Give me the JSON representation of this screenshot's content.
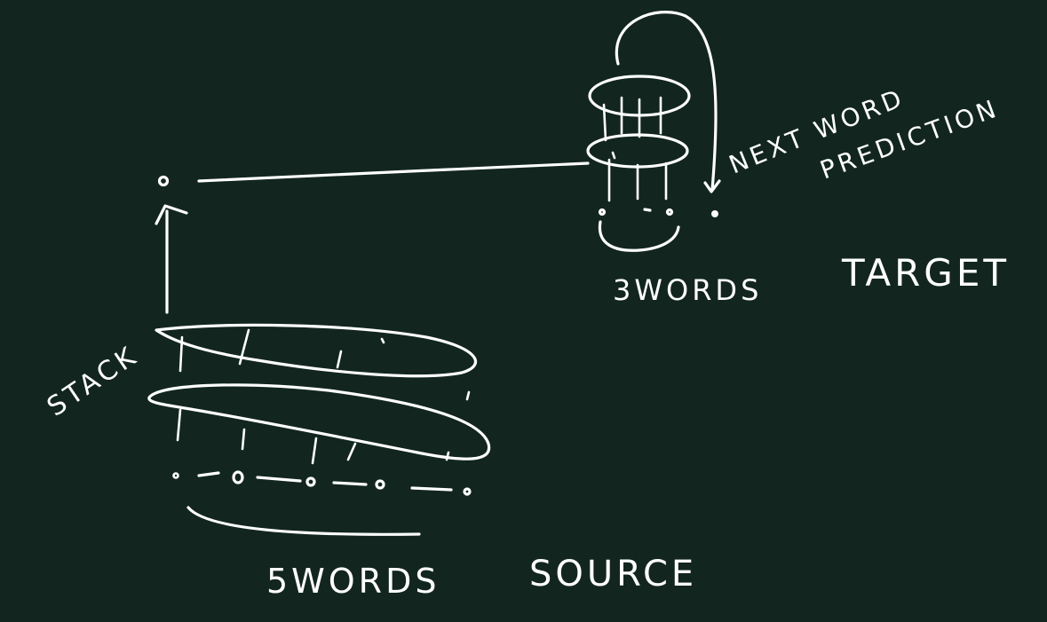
{
  "canvas": {
    "background": "#12261f",
    "ink_color": "#ffffff"
  },
  "labels": {
    "stack": "STACK",
    "source_words": "5WORDS",
    "source": "SOURCE",
    "target_words": "3WORDS",
    "target": "TARGET",
    "next_word": "NEXT WORD",
    "prediction": "PREDICTION"
  }
}
